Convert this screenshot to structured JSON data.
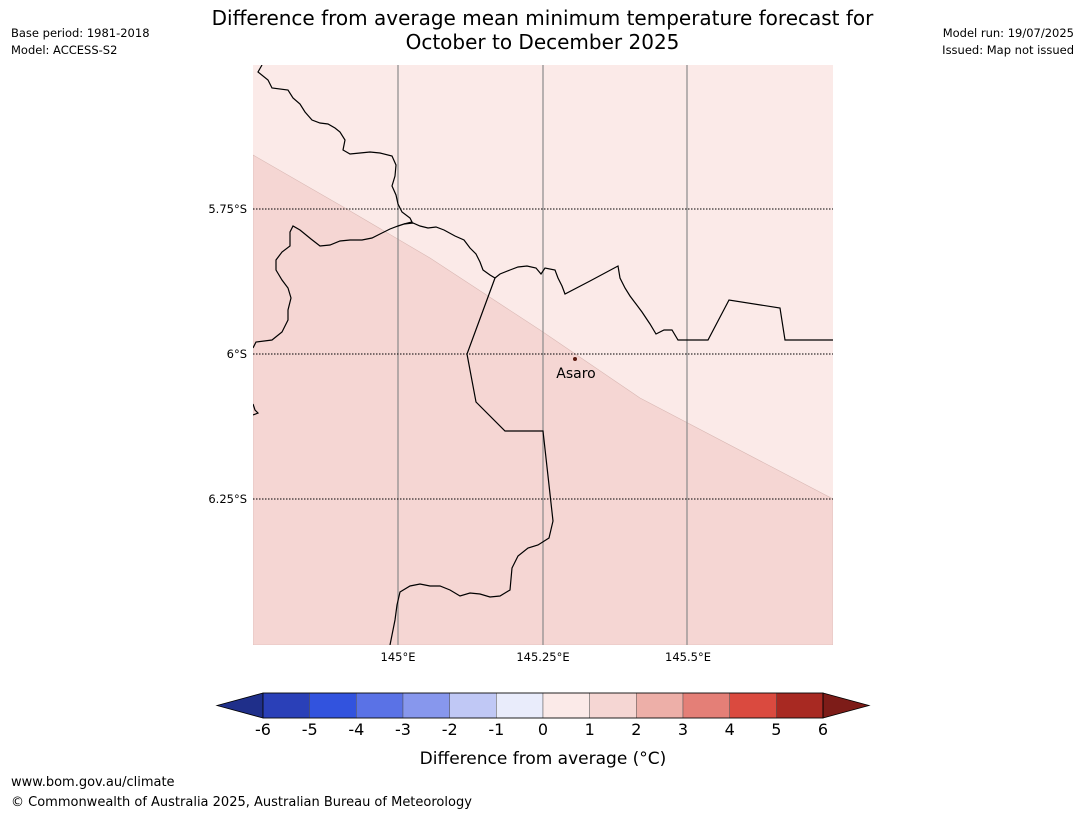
{
  "header": {
    "title_line1": "Difference from average mean minimum temperature forecast for",
    "title_line2": "October to December 2025",
    "base_period": "Base period: 1981-2018",
    "model": "Model: ACCESS-S2",
    "model_run": "Model run: 19/07/2025",
    "issued": "Issued: Map not issued"
  },
  "map": {
    "region_fill_colors": {
      "zone_0_to_1": "#fbeae8",
      "zone_1_to_2": "#f5d6d3"
    },
    "lat_labels": [
      "5.75°S",
      "6°S",
      "6.25°S"
    ],
    "lon_labels": [
      "145°E",
      "145.25°E",
      "145.5°E"
    ],
    "place": {
      "name": "Asaro"
    }
  },
  "legend": {
    "ticks": [
      "-6",
      "-5",
      "-4",
      "-3",
      "-2",
      "-1",
      "0",
      "1",
      "2",
      "3",
      "4",
      "5",
      "6"
    ],
    "colors": [
      "#1f2f8a",
      "#2a40b8",
      "#3253de",
      "#5a72e6",
      "#8797ed",
      "#c0c8f5",
      "#e9ecfb",
      "#fbeae8",
      "#f5d6d3",
      "#edafa8",
      "#e47f77",
      "#da4a3f",
      "#a82922",
      "#7d1c18"
    ],
    "label": "Difference from average (°C)"
  },
  "footer": {
    "url": "www.bom.gov.au/climate",
    "copyright": "© Commonwealth of Australia 2025, Australian Bureau of Meteorology"
  }
}
